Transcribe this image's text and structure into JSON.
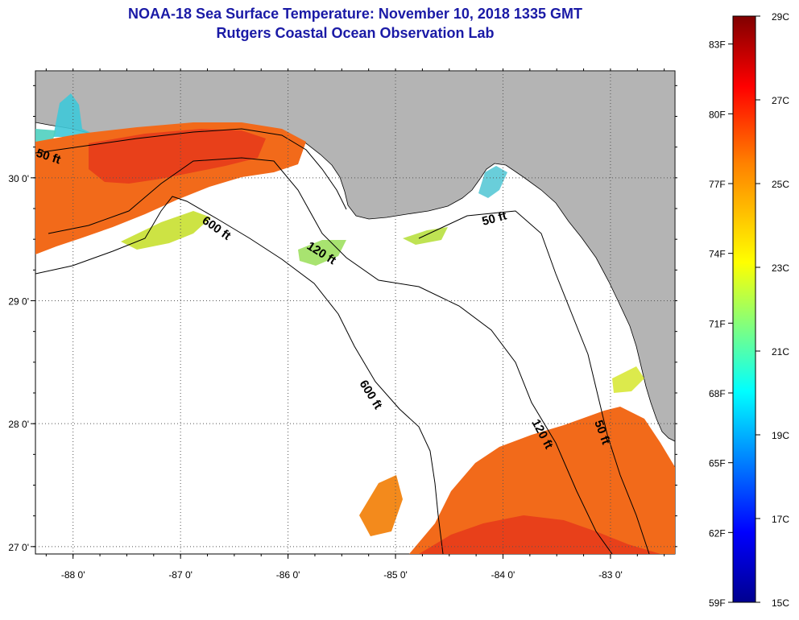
{
  "header": {
    "title": "NOAA-18 Sea Surface Temperature:  November 10, 2018 1335 GMT",
    "subtitle": "Rutgers Coastal Ocean Observation Lab"
  },
  "axes": {
    "x_ticks": [
      {
        "value": -88,
        "label": "-88 0'"
      },
      {
        "value": -87,
        "label": "-87 0'"
      },
      {
        "value": -86,
        "label": "-86 0'"
      },
      {
        "value": -85,
        "label": "-85 0'"
      },
      {
        "value": -84,
        "label": "-84 0'"
      },
      {
        "value": -83,
        "label": "-83 0'"
      }
    ],
    "y_ticks": [
      {
        "value": 30,
        "label": "30 0'"
      },
      {
        "value": 29,
        "label": "29 0'"
      },
      {
        "value": 28,
        "label": "28 0'"
      },
      {
        "value": 27,
        "label": "27 0'"
      }
    ],
    "lon_range": [
      -88.35,
      -82.4
    ],
    "lat_range": [
      26.94,
      30.87
    ],
    "grid": "dotted"
  },
  "contours": {
    "labels": [
      "50 ft",
      "600 ft",
      "120 ft",
      "50 ft",
      "600 ft",
      "120 ft",
      "50 ft"
    ]
  },
  "colorbar": {
    "fahrenheit": [
      "83F",
      "80F",
      "77F",
      "74F",
      "71F",
      "68F",
      "65F",
      "62F",
      "59F"
    ],
    "celsius": [
      "29C",
      "27C",
      "25C",
      "23C",
      "21C",
      "19C",
      "17C",
      "15C"
    ],
    "range_c": [
      15,
      29
    ]
  },
  "colors": {
    "land": "#b4b4b4",
    "sea_no_data": "#ffffff",
    "title": "#1a1aa6",
    "sst_warm": "#f26a1a",
    "sst_hot": "#e8401a"
  }
}
